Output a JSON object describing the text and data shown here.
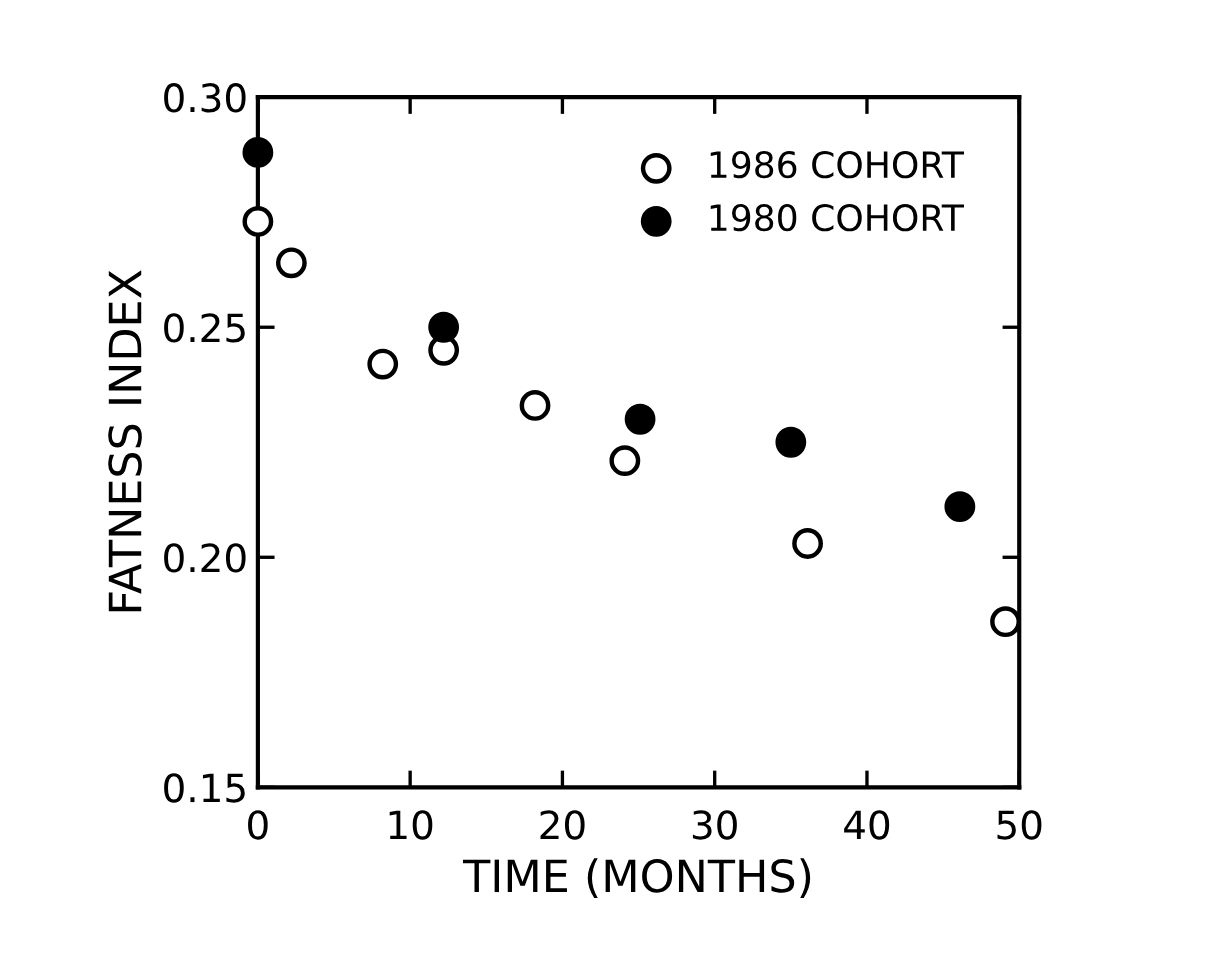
{
  "chart_data": {
    "type": "scatter",
    "xlabel": "TIME (MONTHS)",
    "ylabel": "FATNESS INDEX",
    "xlim": [
      0,
      50
    ],
    "xticks": [
      0,
      10,
      20,
      30,
      40,
      50
    ],
    "ylim": [
      0.15,
      0.3
    ],
    "yticks": [
      {
        "value": 0.15,
        "label": "0.15"
      },
      {
        "value": 0.2,
        "label": "0.20"
      },
      {
        "value": 0.25,
        "label": "0.25"
      },
      {
        "value": 0.3,
        "label": "0.30"
      }
    ],
    "grid": false,
    "legend": "top right",
    "marker": "circle",
    "series": [
      {
        "name": "1986 COHORT",
        "color": "#ffffff",
        "x": [
          0,
          2.2,
          8.2,
          12.2,
          18.2,
          24.1,
          36.1,
          49.1
        ],
        "values": [
          0.273,
          0.264,
          0.242,
          0.245,
          0.233,
          0.221,
          0.203,
          0.186
        ]
      },
      {
        "name": "1980 COHORT",
        "color": "#000000",
        "x": [
          0,
          12.2,
          25.1,
          35,
          46.1
        ],
        "values": [
          0.288,
          0.25,
          0.23,
          0.225,
          0.211
        ]
      }
    ]
  }
}
